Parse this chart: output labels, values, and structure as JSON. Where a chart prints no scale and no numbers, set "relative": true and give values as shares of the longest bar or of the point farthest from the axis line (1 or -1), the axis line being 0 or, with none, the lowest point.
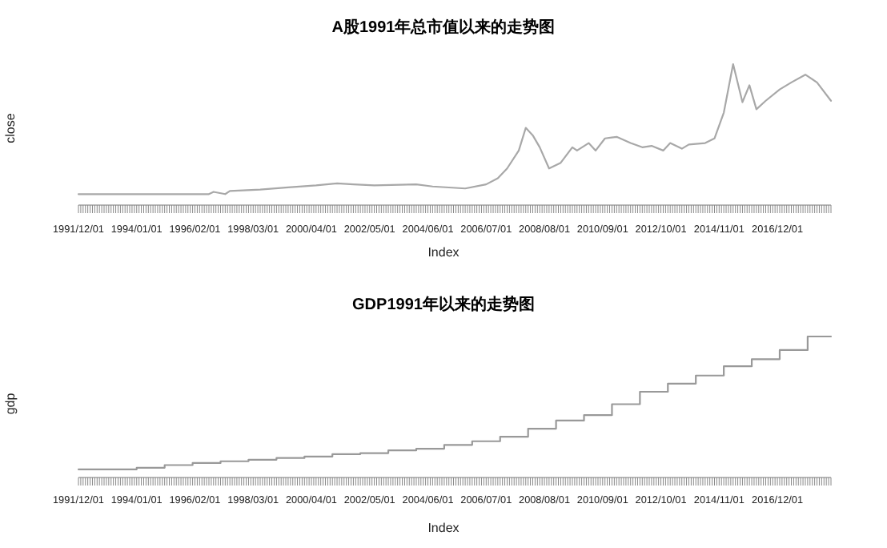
{
  "chart_data": [
    {
      "type": "line",
      "title": "A股1991年总市值以来的走势图",
      "xlabel": "Index",
      "ylabel": "close",
      "relative": true,
      "color": "#a8a8a8",
      "x": [
        "1991-12",
        "1996-08",
        "1996-10",
        "1997-03",
        "1997-05",
        "1998-06",
        "1999-06",
        "2000-06",
        "2001-03",
        "2001-10",
        "2002-07",
        "2004-01",
        "2004-08",
        "2005-10",
        "2006-07",
        "2006-12",
        "2007-04",
        "2007-09",
        "2007-12",
        "2008-03",
        "2008-06",
        "2008-10",
        "2009-03",
        "2009-08",
        "2009-10",
        "2010-03",
        "2010-06",
        "2010-10",
        "2011-03",
        "2011-09",
        "2012-02",
        "2012-06",
        "2012-11",
        "2013-02",
        "2013-07",
        "2013-10",
        "2014-05",
        "2014-09",
        "2015-01",
        "2015-05",
        "2015-09",
        "2015-12",
        "2016-03",
        "2016-07",
        "2017-01",
        "2017-06",
        "2017-12",
        "2018-05",
        "2018-11"
      ],
      "values": [
        0.078,
        0.078,
        0.094,
        0.078,
        0.1,
        0.11,
        0.126,
        0.14,
        0.154,
        0.147,
        0.14,
        0.147,
        0.132,
        0.118,
        0.147,
        0.19,
        0.26,
        0.387,
        0.548,
        0.495,
        0.41,
        0.26,
        0.3,
        0.41,
        0.387,
        0.44,
        0.387,
        0.473,
        0.484,
        0.44,
        0.41,
        0.42,
        0.387,
        0.44,
        0.4,
        0.43,
        0.44,
        0.473,
        0.656,
        1.0,
        0.73,
        0.85,
        0.68,
        0.74,
        0.82,
        0.87,
        0.925,
        0.87,
        0.74
      ],
      "xlim": [
        "1991-12",
        "2018-11"
      ],
      "xticks": [
        {
          "value": "1991-12",
          "label": "1991/12/01"
        },
        {
          "value": "1994-01",
          "label": "1994/01/01"
        },
        {
          "value": "1996-02",
          "label": "1996/02/01"
        },
        {
          "value": "1998-03",
          "label": "1998/03/01"
        },
        {
          "value": "2000-04",
          "label": "2000/04/01"
        },
        {
          "value": "2002-05",
          "label": "2002/05/01"
        },
        {
          "value": "2004-06",
          "label": "2004/06/01"
        },
        {
          "value": "2006-07",
          "label": "2006/07/01"
        },
        {
          "value": "2008-08",
          "label": "2008/08/01"
        },
        {
          "value": "2010-09",
          "label": "2010/09/01"
        },
        {
          "value": "2012-10",
          "label": "2012/10/01"
        },
        {
          "value": "2014-11",
          "label": "2014/11/01"
        },
        {
          "value": "2016-12",
          "label": "2016/12/01"
        }
      ]
    },
    {
      "type": "step",
      "title": "GDP1991年以来的走势图",
      "xlabel": "Index",
      "ylabel": "gdp",
      "relative": true,
      "color": "#999999",
      "x": [
        "1991-12",
        "1994-01",
        "1995-01",
        "1996-01",
        "1997-01",
        "1998-01",
        "1999-01",
        "2000-01",
        "2001-01",
        "2002-01",
        "2003-01",
        "2004-01",
        "2005-01",
        "2006-01",
        "2007-01",
        "2008-01",
        "2009-01",
        "2010-01",
        "2011-01",
        "2012-01",
        "2013-01",
        "2014-01",
        "2015-01",
        "2016-01",
        "2017-01",
        "2018-01",
        "2018-11"
      ],
      "values": [
        0.058,
        0.069,
        0.088,
        0.103,
        0.115,
        0.126,
        0.138,
        0.149,
        0.166,
        0.173,
        0.192,
        0.204,
        0.231,
        0.257,
        0.289,
        0.346,
        0.404,
        0.442,
        0.52,
        0.608,
        0.666,
        0.723,
        0.789,
        0.839,
        0.904,
        1.0,
        1.0
      ],
      "xlim": [
        "1991-12",
        "2018-11"
      ],
      "xticks": [
        {
          "value": "1991-12",
          "label": "1991/12/01"
        },
        {
          "value": "1994-01",
          "label": "1994/01/01"
        },
        {
          "value": "1996-02",
          "label": "1996/02/01"
        },
        {
          "value": "1998-03",
          "label": "1998/03/01"
        },
        {
          "value": "2000-04",
          "label": "2000/04/01"
        },
        {
          "value": "2002-05",
          "label": "2002/05/01"
        },
        {
          "value": "2004-06",
          "label": "2004/06/01"
        },
        {
          "value": "2006-07",
          "label": "2006/07/01"
        },
        {
          "value": "2008-08",
          "label": "2008/08/01"
        },
        {
          "value": "2010-09",
          "label": "2010/09/01"
        },
        {
          "value": "2012-10",
          "label": "2012/10/01"
        },
        {
          "value": "2014-11",
          "label": "2014/11/01"
        },
        {
          "value": "2016-12",
          "label": "2016/12/01"
        }
      ]
    }
  ]
}
